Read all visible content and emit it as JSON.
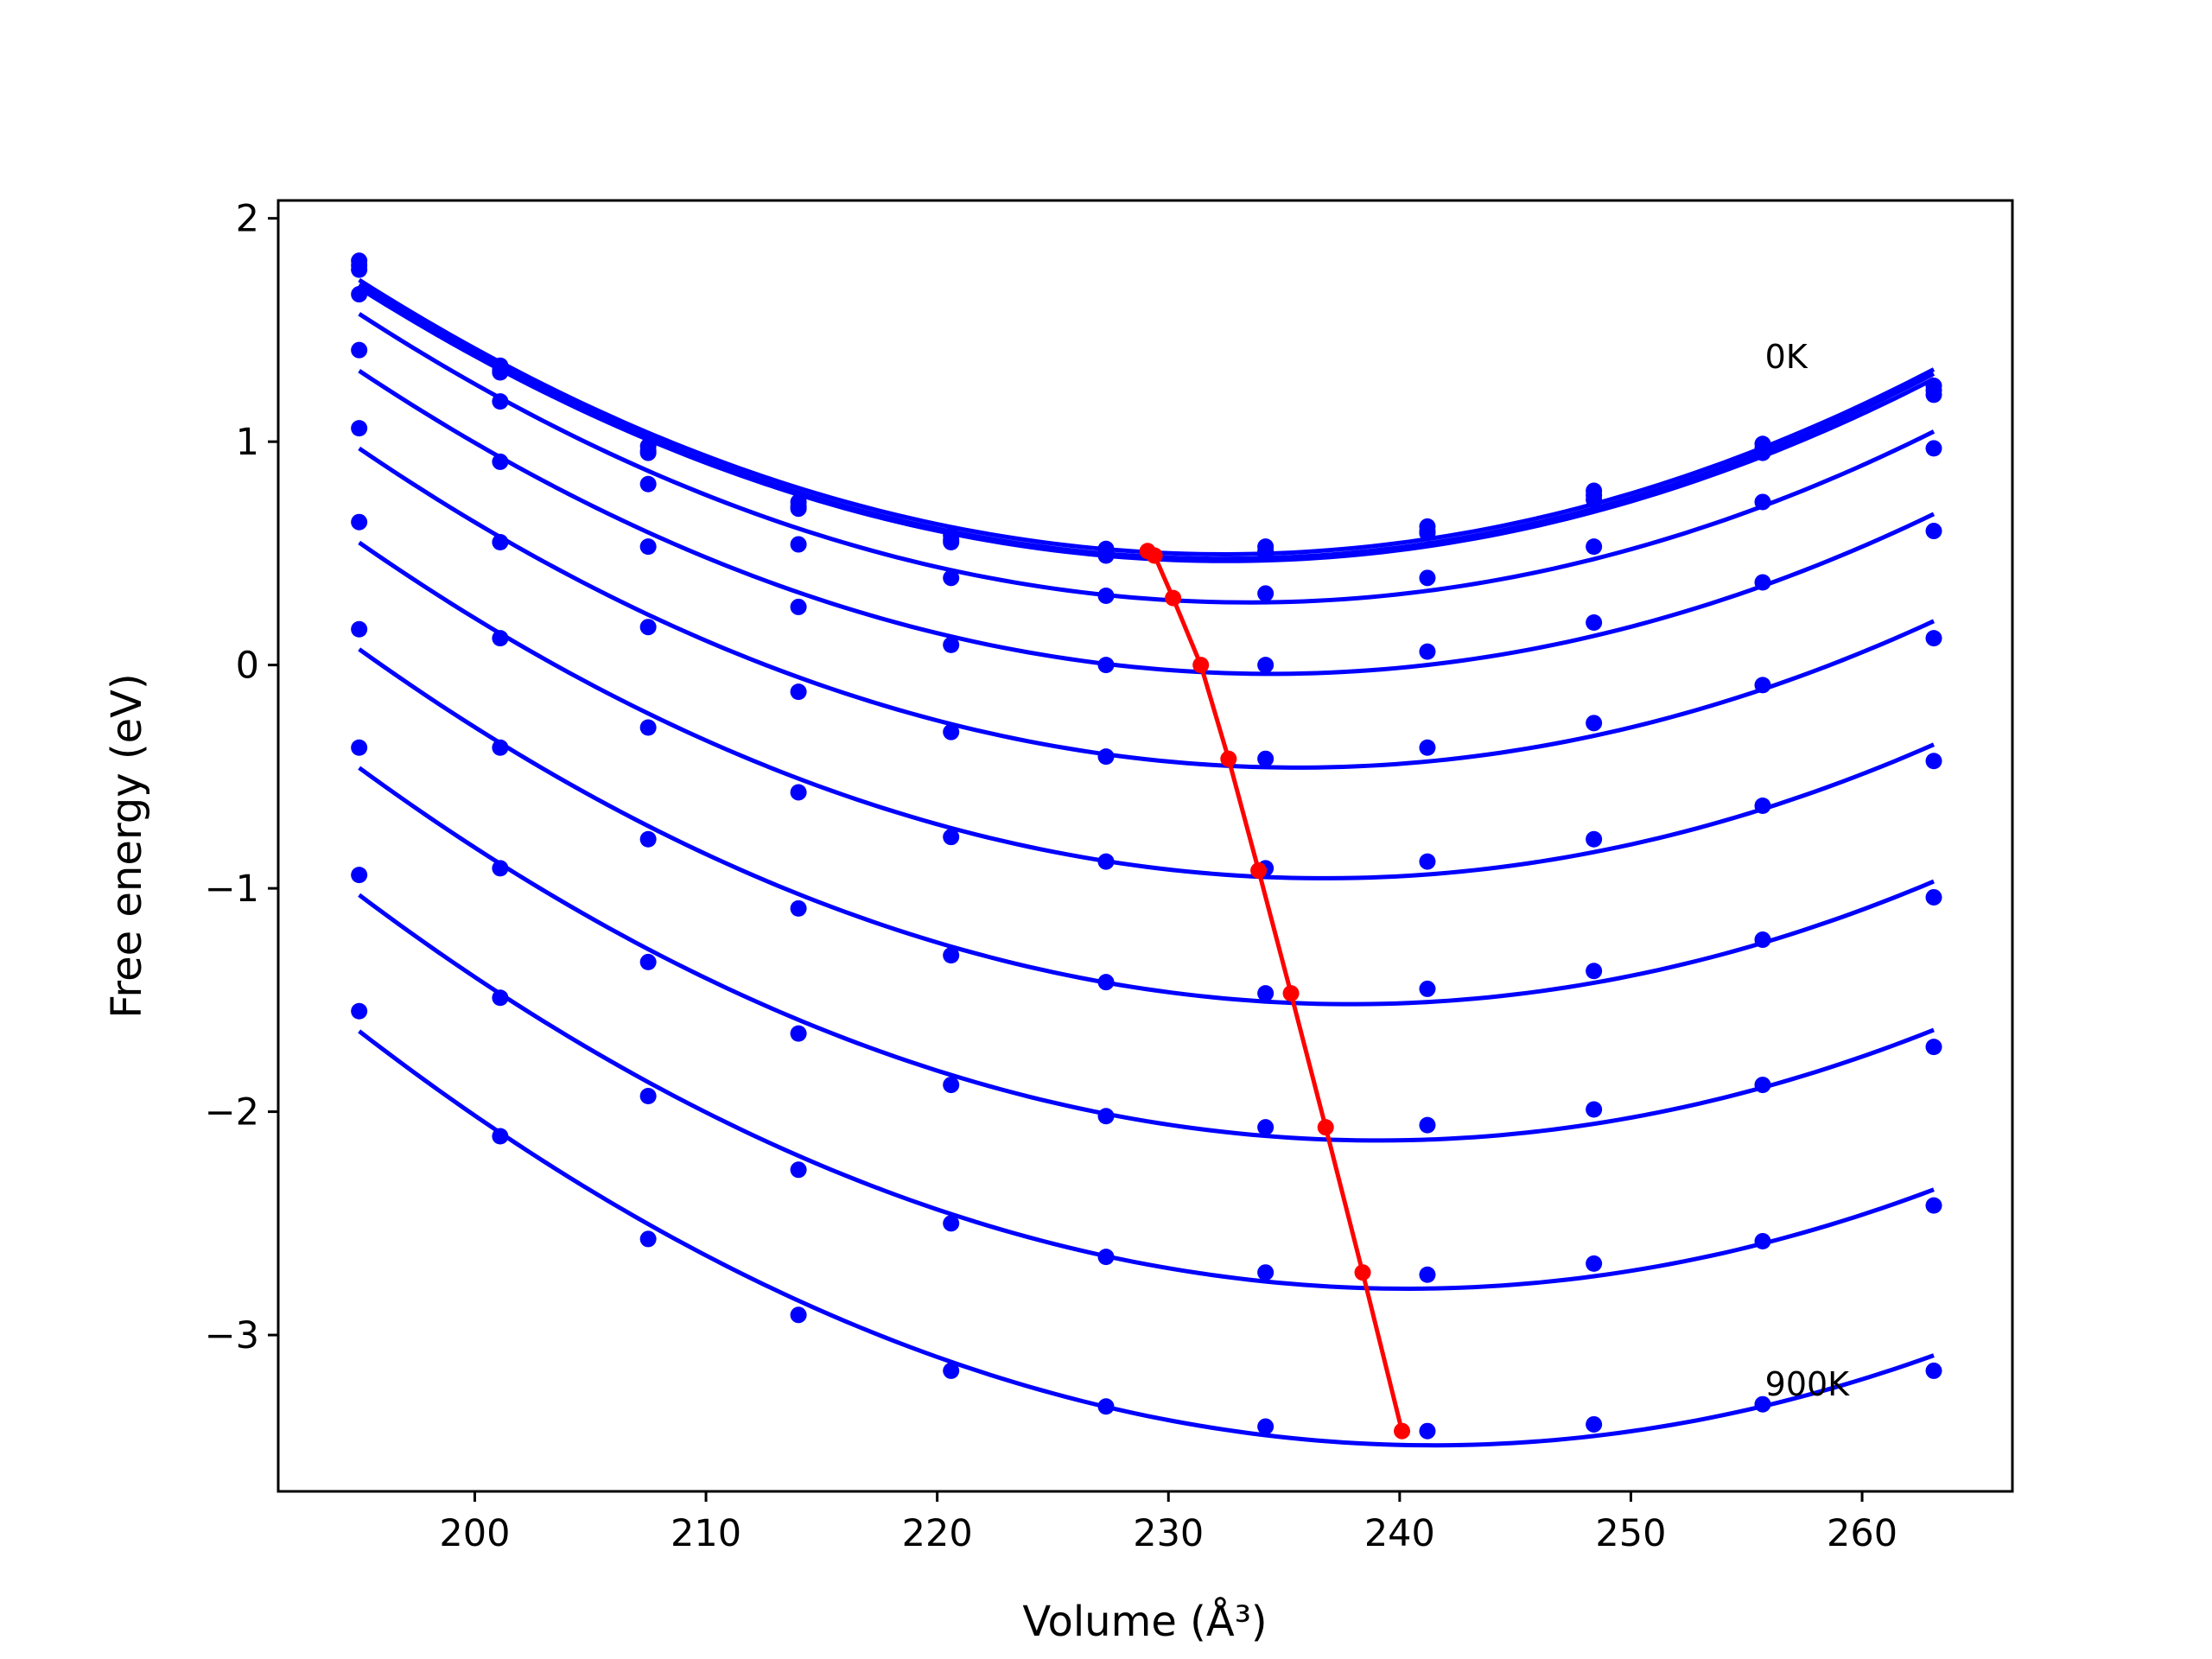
{
  "chart_data": {
    "type": "line",
    "title": "",
    "xlabel": "Volume (Å³)",
    "ylabel": "Free energy (eV)",
    "xlim": [
      191.5,
      266.5
    ],
    "ylim": [
      -3.7,
      2.08
    ],
    "xticks": [
      200,
      210,
      220,
      230,
      240,
      250,
      260
    ],
    "yticks": [
      2,
      1,
      0,
      -1,
      -2,
      -3
    ],
    "xtick_labels": [
      "200",
      "210",
      "220",
      "230",
      "240",
      "250",
      "260"
    ],
    "ytick_labels": [
      "2",
      "1",
      "0",
      "−1",
      "−2",
      "−3"
    ],
    "grid": false,
    "annotations": [
      {
        "text": "0K",
        "x": 255.8,
        "y": 1.33
      },
      {
        "text": "900K",
        "x": 255.8,
        "y": -3.27
      }
    ],
    "curve_color": "#0000ff",
    "minima_color": "#ff0000",
    "x": [
      195.0,
      201.1,
      207.5,
      214.0,
      220.6,
      227.3,
      234.2,
      241.2,
      248.4,
      255.7,
      263.1
    ],
    "series": [
      {
        "values": [
          1.81,
          1.34,
          0.98,
          0.73,
          0.58,
          0.52,
          0.53,
          0.62,
          0.78,
          0.99,
          1.25
        ]
      },
      {
        "values": [
          1.79,
          1.32,
          0.96,
          0.71,
          0.56,
          0.5,
          0.51,
          0.6,
          0.76,
          0.97,
          1.23
        ]
      },
      {
        "values": [
          1.77,
          1.31,
          0.95,
          0.7,
          0.55,
          0.49,
          0.5,
          0.59,
          0.74,
          0.95,
          1.21
        ]
      },
      {
        "values": [
          1.66,
          1.18,
          0.81,
          0.54,
          0.39,
          0.31,
          0.32,
          0.39,
          0.53,
          0.73,
          0.97
        ]
      },
      {
        "values": [
          1.41,
          0.91,
          0.53,
          0.26,
          0.09,
          0.0,
          0.0,
          0.06,
          0.19,
          0.37,
          0.6
        ]
      },
      {
        "values": [
          1.06,
          0.55,
          0.17,
          -0.12,
          -0.3,
          -0.41,
          -0.42,
          -0.37,
          -0.26,
          -0.09,
          0.12
        ]
      },
      {
        "values": [
          0.64,
          0.12,
          -0.28,
          -0.57,
          -0.77,
          -0.88,
          -0.91,
          -0.88,
          -0.78,
          -0.63,
          -0.43
        ]
      },
      {
        "values": [
          0.16,
          -0.37,
          -0.78,
          -1.09,
          -1.3,
          -1.42,
          -1.47,
          -1.45,
          -1.37,
          -1.23,
          -1.04
        ]
      },
      {
        "values": [
          -0.37,
          -0.91,
          -1.33,
          -1.65,
          -1.88,
          -2.02,
          -2.07,
          -2.06,
          -1.99,
          -1.88,
          -1.71
        ]
      },
      {
        "values": [
          -0.94,
          -1.49,
          -1.93,
          -2.26,
          -2.5,
          -2.65,
          -2.72,
          -2.73,
          -2.68,
          -2.58,
          -2.42
        ]
      },
      {
        "values": [
          -1.55,
          -2.11,
          -2.57,
          -2.91,
          -3.16,
          -3.32,
          -3.41,
          -3.43,
          -3.4,
          -3.31,
          -3.16
        ]
      }
    ],
    "minima": {
      "x": [
        229.1,
        229.4,
        230.2,
        231.4,
        232.6,
        233.9,
        235.3,
        236.8,
        238.4,
        240.1
      ],
      "y": [
        0.51,
        0.49,
        0.3,
        0.0,
        -0.42,
        -0.92,
        -1.47,
        -2.07,
        -2.72,
        -3.43
      ]
    }
  }
}
